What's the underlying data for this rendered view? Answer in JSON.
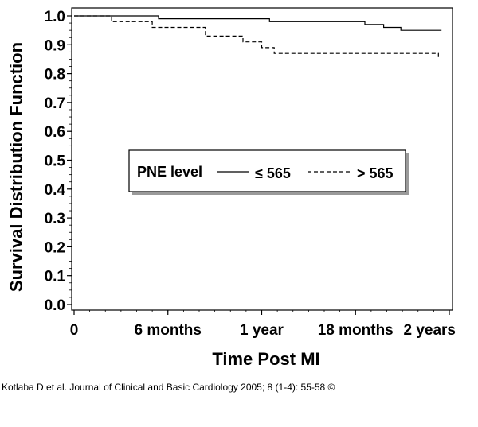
{
  "chart_data": {
    "type": "line",
    "title": "",
    "xlabel": "Time Post MI",
    "ylabel": "Survival Distribution Function",
    "xlim": [
      0,
      24
    ],
    "ylim": [
      0,
      1
    ],
    "x_ticks": [
      {
        "value": 0,
        "label": "0"
      },
      {
        "value": 6,
        "label": "6 months"
      },
      {
        "value": 12,
        "label": "1 year"
      },
      {
        "value": 18,
        "label": "18 months"
      },
      {
        "value": 24,
        "label": "2 years"
      }
    ],
    "y_ticks": [
      {
        "value": 0.0,
        "label": "0.0"
      },
      {
        "value": 0.1,
        "label": "0.1"
      },
      {
        "value": 0.2,
        "label": "0.2"
      },
      {
        "value": 0.3,
        "label": "0.3"
      },
      {
        "value": 0.4,
        "label": "0.4"
      },
      {
        "value": 0.5,
        "label": "0.5"
      },
      {
        "value": 0.6,
        "label": "0.6"
      },
      {
        "value": 0.7,
        "label": "0.7"
      },
      {
        "value": 0.8,
        "label": "0.8"
      },
      {
        "value": 0.9,
        "label": "0.9"
      },
      {
        "value": 1.0,
        "label": "1.0"
      }
    ],
    "legend": {
      "title": "PNE level",
      "placement": "center",
      "entries": [
        {
          "label": "≤ 565",
          "style": "solid"
        },
        {
          "label": "> 565",
          "style": "dashed"
        }
      ]
    },
    "series": [
      {
        "name": "≤ 565",
        "style": "solid",
        "color": "#000000",
        "points": [
          [
            0,
            1.0
          ],
          [
            5.4,
            1.0
          ],
          [
            5.4,
            0.99
          ],
          [
            12.5,
            0.99
          ],
          [
            12.5,
            0.98
          ],
          [
            18.6,
            0.98
          ],
          [
            18.6,
            0.97
          ],
          [
            19.8,
            0.97
          ],
          [
            19.8,
            0.96
          ],
          [
            20.9,
            0.96
          ],
          [
            20.9,
            0.95
          ],
          [
            23.5,
            0.95
          ]
        ]
      },
      {
        "name": "> 565",
        "style": "dashed",
        "color": "#000000",
        "points": [
          [
            0,
            1.0
          ],
          [
            2.4,
            1.0
          ],
          [
            2.4,
            0.98
          ],
          [
            5.0,
            0.98
          ],
          [
            5.0,
            0.96
          ],
          [
            8.4,
            0.96
          ],
          [
            8.4,
            0.93
          ],
          [
            10.8,
            0.93
          ],
          [
            10.8,
            0.91
          ],
          [
            12.0,
            0.91
          ],
          [
            12.0,
            0.89
          ],
          [
            12.8,
            0.89
          ],
          [
            12.8,
            0.87
          ],
          [
            23.3,
            0.87
          ],
          [
            23.3,
            0.85
          ]
        ]
      }
    ]
  },
  "credit": "Kotlaba D et al. Journal of Clinical and Basic Cardiology 2005; 8 (1-4): 55-58 ©"
}
